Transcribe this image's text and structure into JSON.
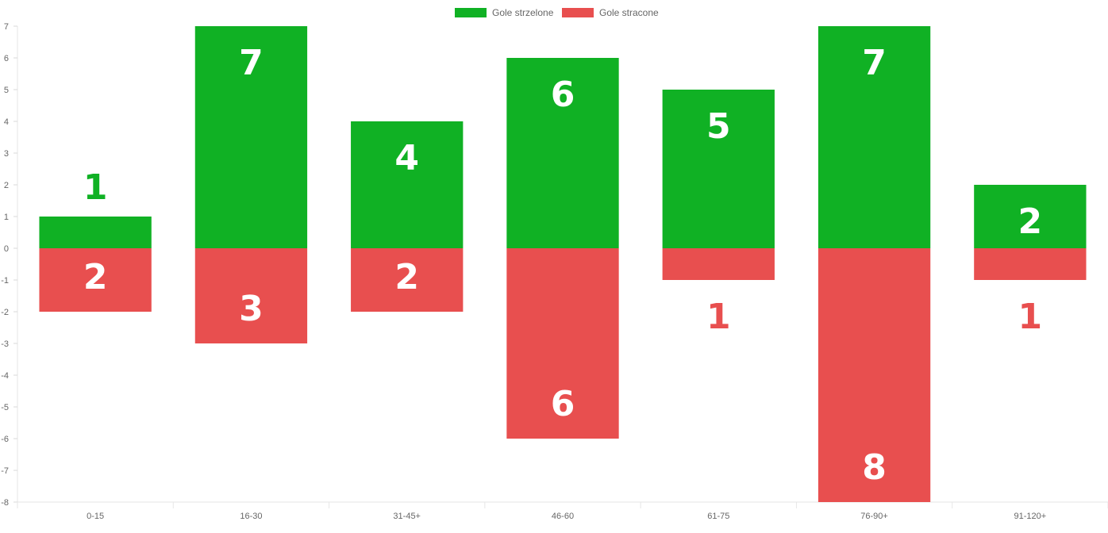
{
  "chart_data": {
    "type": "bar",
    "stacked": true,
    "categories": [
      "0-15",
      "16-30",
      "31-45+",
      "46-60",
      "61-75",
      "76-90+",
      "91-120+"
    ],
    "series": [
      {
        "name": "Gole strzelone",
        "color": "#10b124",
        "values": [
          1,
          7,
          4,
          6,
          5,
          7,
          2
        ]
      },
      {
        "name": "Gole stracone",
        "color": "#e84f4f",
        "values": [
          -2,
          -3,
          -2,
          -6,
          -1,
          -8,
          -1
        ]
      }
    ],
    "data_labels": [
      [
        "1",
        "7",
        "4",
        "6",
        "5",
        "7",
        "2"
      ],
      [
        "2",
        "3",
        "2",
        "6",
        "1",
        "8",
        "1"
      ]
    ],
    "ylim": [
      -8,
      7
    ],
    "yticks": [
      "7",
      "6",
      "5",
      "4",
      "3",
      "2",
      "1",
      "0",
      "-1",
      "-2",
      "-3",
      "-4",
      "-5",
      "-6",
      "-7",
      "-8"
    ],
    "legend_position": "top",
    "grid": false
  }
}
